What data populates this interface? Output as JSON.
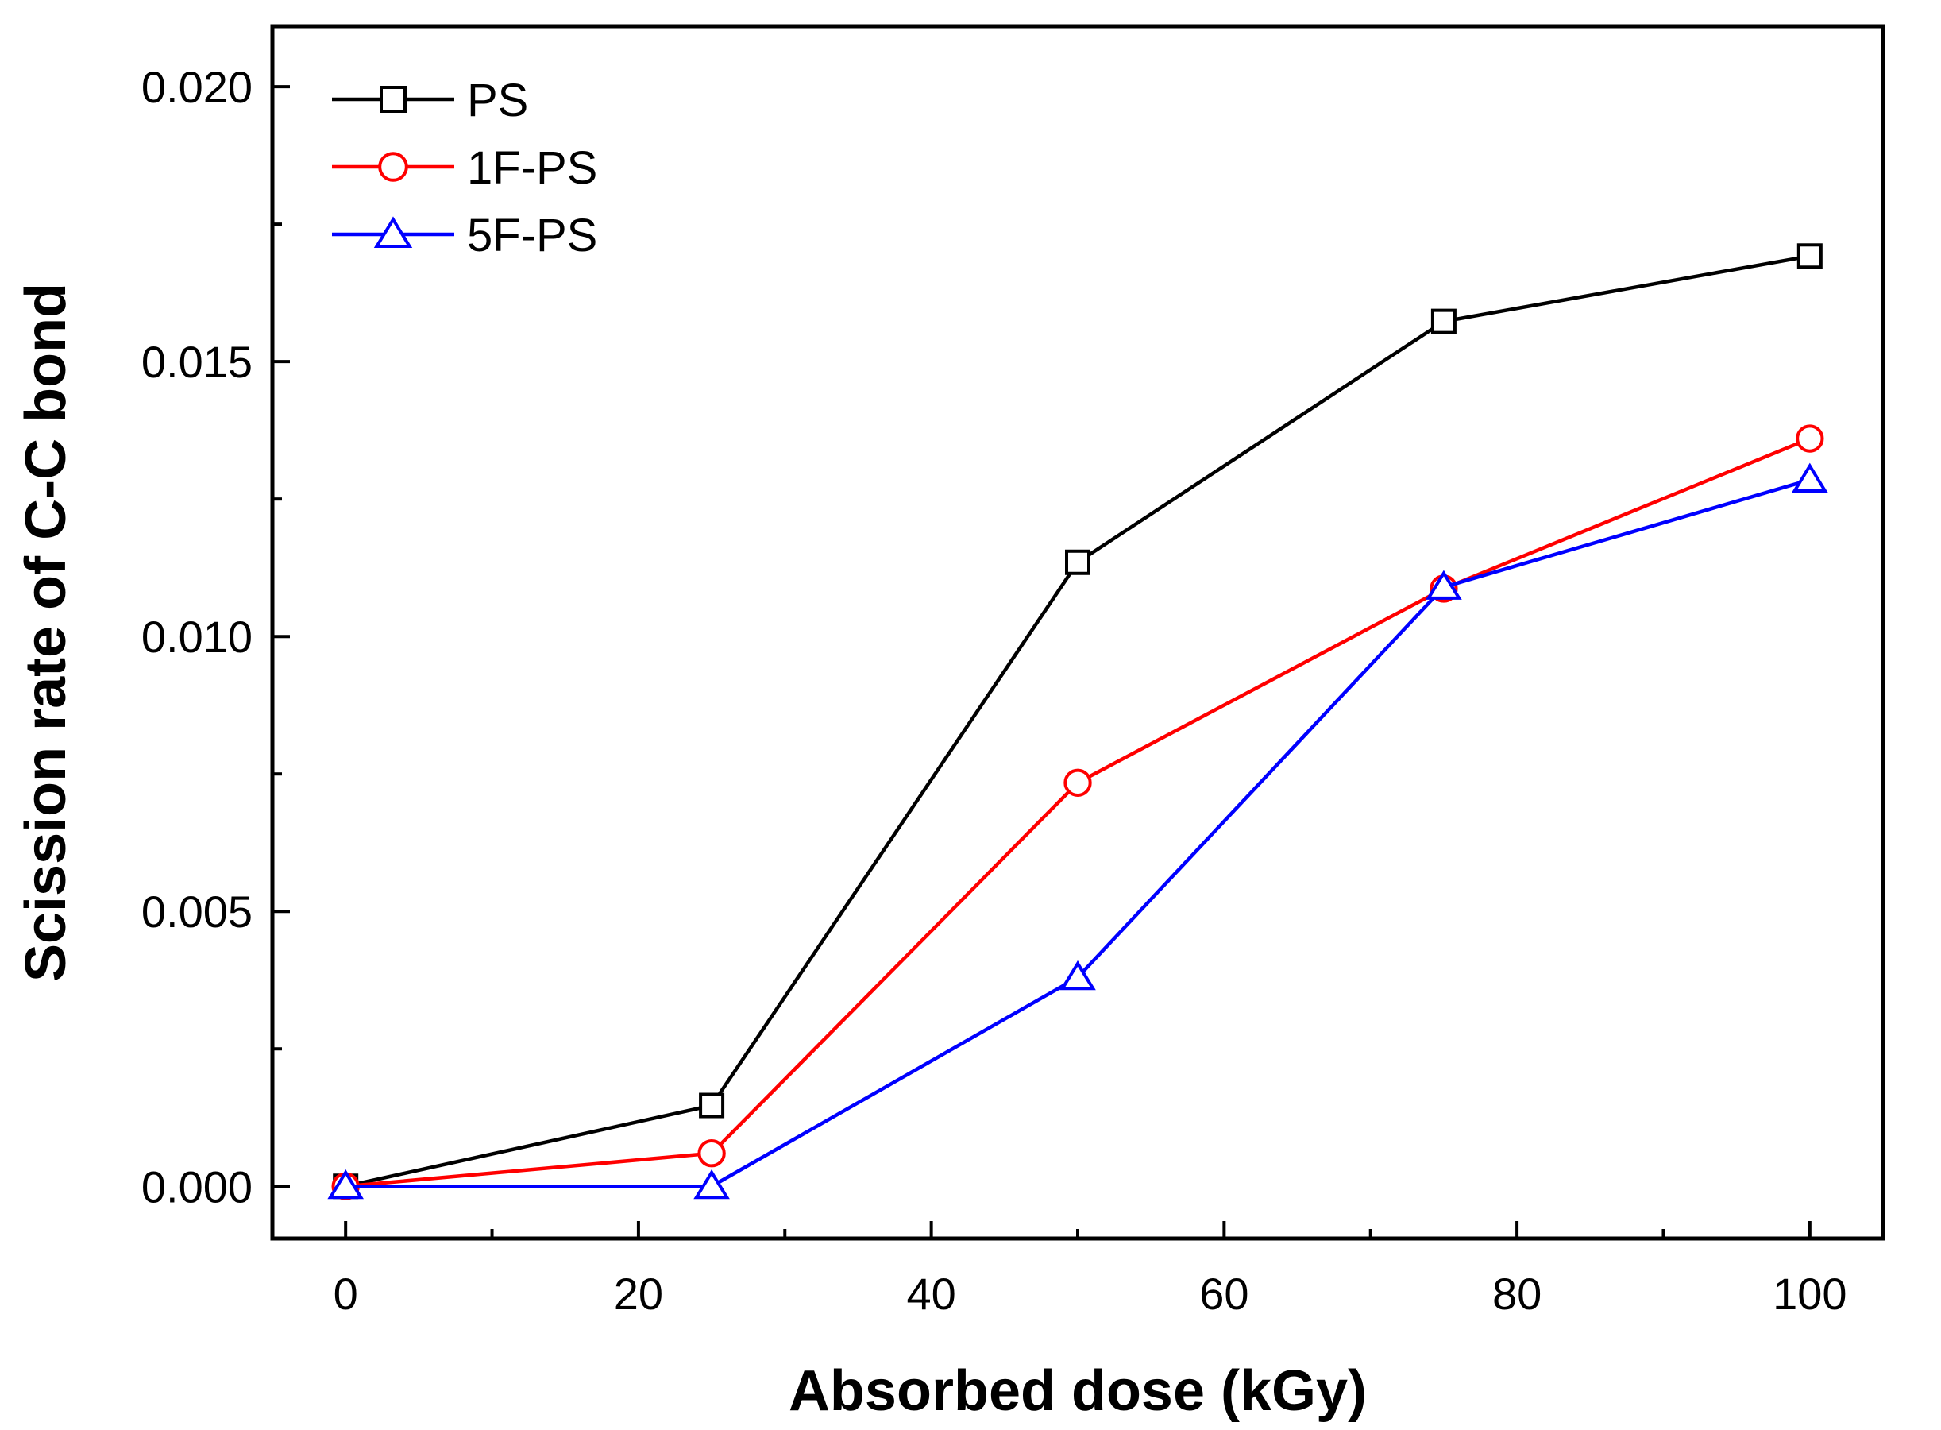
{
  "chart_data": {
    "type": "line",
    "title": "",
    "xlabel": "Absorbed dose (kGy)",
    "ylabel": "Scission rate of C-C bond",
    "xlim": [
      -5,
      105
    ],
    "ylim": [
      -0.00095,
      0.0211
    ],
    "xticks": [
      0,
      20,
      40,
      60,
      80,
      100
    ],
    "xtick_labels": [
      "0",
      "20",
      "40",
      "60",
      "80",
      "100"
    ],
    "yticks": [
      0,
      0.005,
      0.01,
      0.015,
      0.02
    ],
    "ytick_labels": [
      "0.000",
      "0.005",
      "0.010",
      "0.015",
      "0.020"
    ],
    "x": [
      0,
      25,
      50,
      75,
      100
    ],
    "series": [
      {
        "name": "PS",
        "color": "#000000",
        "marker": "square",
        "values": [
          0.0,
          0.00147,
          0.01135,
          0.01573,
          0.01692
        ]
      },
      {
        "name": "1F-PS",
        "color": "#ff0000",
        "marker": "circle",
        "values": [
          0.0,
          0.0006,
          0.00734,
          0.01087,
          0.0136
        ]
      },
      {
        "name": "5F-PS",
        "color": "#0000ff",
        "marker": "triangle",
        "values": [
          0.0,
          0.0,
          0.0038,
          0.0109,
          0.01285
        ]
      }
    ],
    "legend_position": "top-left",
    "grid": false
  }
}
